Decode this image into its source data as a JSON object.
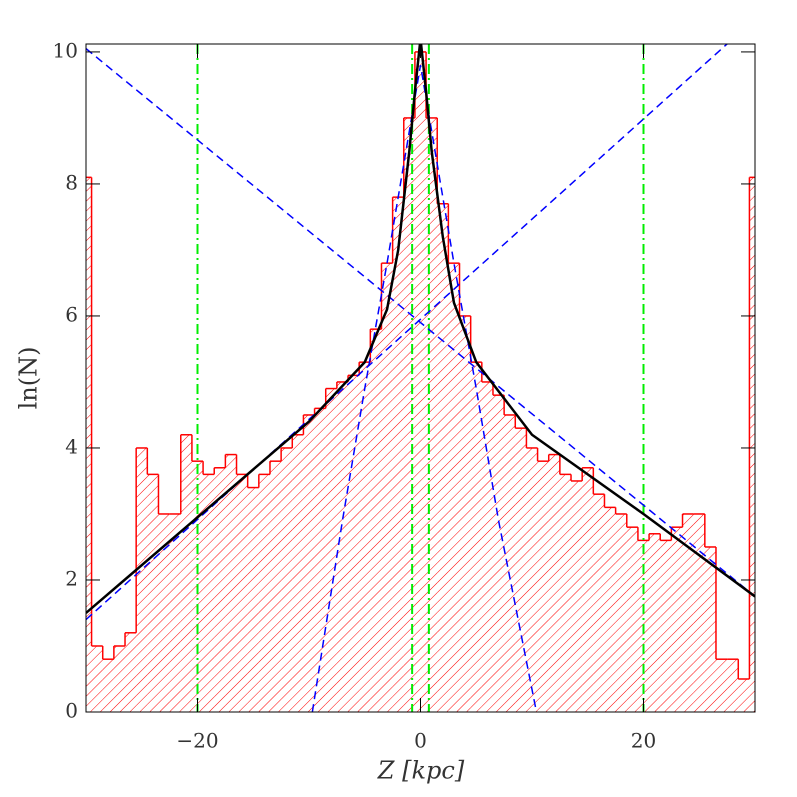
{
  "chart_data": {
    "type": "line",
    "xlabel": "Z  [kpc]",
    "ylabel": "ln(N)",
    "xlim": [
      -30,
      30
    ],
    "ylim": [
      0,
      10.12
    ],
    "xticks": [
      {
        "value": -20,
        "label": "−20"
      },
      0,
      20
    ],
    "yticks": [
      0,
      2,
      4,
      6,
      8,
      10
    ],
    "series": [
      {
        "style": "step-hatched",
        "color": "#ff0000",
        "x": [
          -30,
          -29,
          -28,
          -27,
          -26,
          -25,
          -24,
          -23,
          -22,
          -21,
          -20,
          -19,
          -18,
          -17,
          -16,
          -15,
          -14,
          -13,
          -12,
          -11,
          -10,
          -9,
          -8,
          -7,
          -6,
          -5,
          -4,
          -3,
          -2,
          -1,
          0,
          1,
          2,
          3,
          4,
          5,
          6,
          7,
          8,
          9,
          10,
          11,
          12,
          13,
          14,
          15,
          16,
          17,
          18,
          19,
          20,
          21,
          22,
          23,
          24,
          25,
          26,
          27,
          28,
          29,
          30
        ],
        "values": [
          8.1,
          1,
          0.8,
          1,
          1.2,
          4.0,
          3.6,
          3.0,
          3.0,
          4.2,
          3.8,
          3.6,
          3.7,
          3.9,
          3.6,
          3.4,
          3.6,
          3.8,
          4.0,
          4.2,
          4.5,
          4.6,
          4.9,
          5.0,
          5.1,
          5.3,
          5.8,
          6.8,
          7.8,
          9.0,
          10.0,
          9.0,
          7.7,
          6.8,
          6.0,
          5.3,
          5.0,
          4.8,
          4.5,
          4.3,
          4.0,
          3.8,
          3.9,
          3.6,
          3.5,
          3.7,
          3.3,
          3.1,
          3.0,
          2.8,
          2.6,
          2.7,
          2.6,
          2.8,
          3.0,
          3.0,
          2.5,
          0.8,
          0.8,
          0.5,
          8.1
        ]
      },
      {
        "style": "dashed",
        "color": "#0000ff",
        "x": [
          -30,
          30
        ],
        "values": [
          10.05,
          1.75
        ]
      },
      {
        "style": "dashed",
        "color": "#0000ff",
        "x": [
          -30,
          30
        ],
        "values": [
          1.4,
          10.5
        ]
      },
      {
        "style": "dashed",
        "color": "#0000ff",
        "x": [
          -9.7,
          -7,
          -5,
          -3,
          -1,
          0,
          1,
          3,
          5,
          7,
          10.4
        ],
        "values": [
          0,
          2.9,
          4.9,
          6.8,
          8.8,
          9.8,
          8.8,
          6.8,
          4.9,
          2.9,
          0
        ]
      },
      {
        "style": "solid",
        "color": "#000000",
        "x": [
          -30,
          -20,
          -10,
          -5,
          -3,
          -2,
          -1,
          -0.5,
          0,
          0.5,
          1,
          2,
          3,
          5,
          10,
          20,
          30
        ],
        "values": [
          1.5,
          2.95,
          4.4,
          5.3,
          6.1,
          7.0,
          8.5,
          9.4,
          10.2,
          9.4,
          8.5,
          7.2,
          6.2,
          5.3,
          4.2,
          3.0,
          1.75
        ]
      }
    ],
    "vlines": [
      {
        "x": -20,
        "color": "#00ee00"
      },
      {
        "x": -0.75,
        "color": "#00ee00"
      },
      {
        "x": 0.75,
        "color": "#00ee00"
      },
      {
        "x": 20,
        "color": "#00ee00"
      }
    ]
  }
}
